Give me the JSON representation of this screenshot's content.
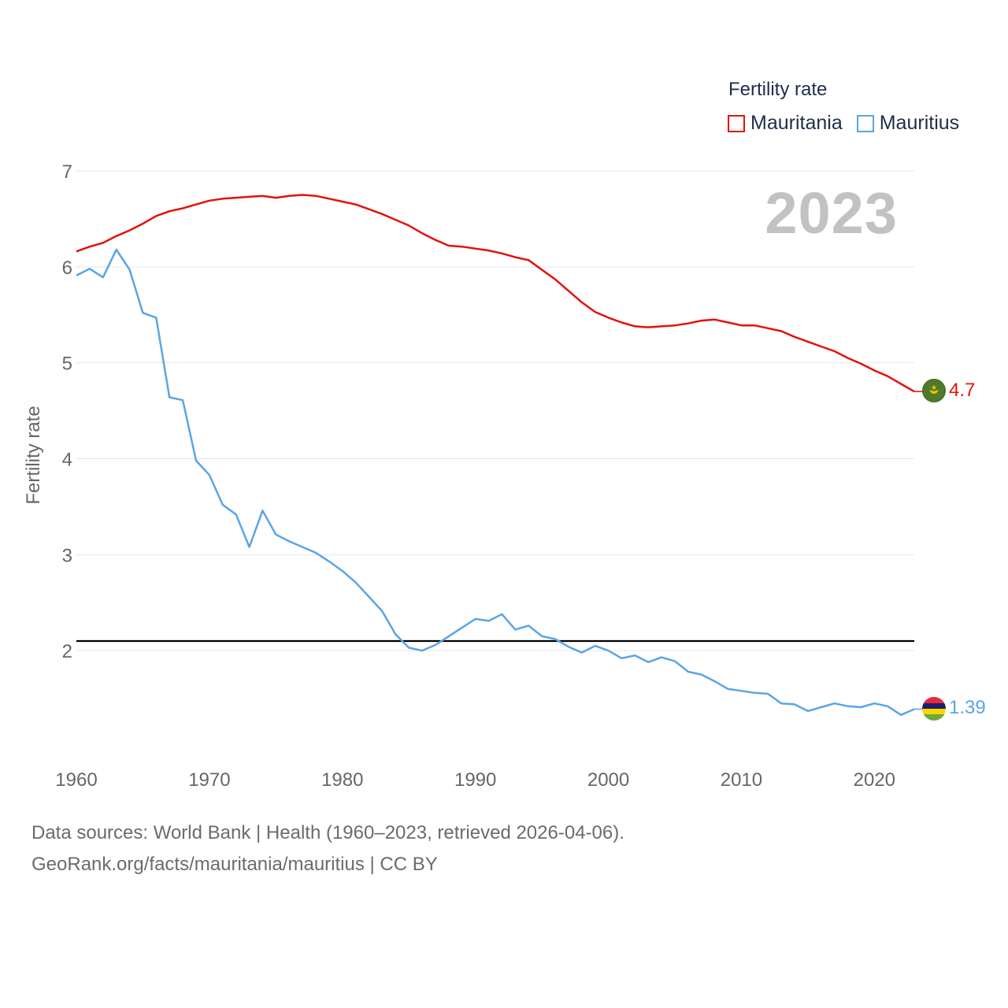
{
  "legend": {
    "title": "Fertility rate",
    "items": [
      {
        "label": "Mauritania",
        "color": "#e3120b"
      },
      {
        "label": "Mauritius",
        "color": "#5aa5e6"
      }
    ]
  },
  "year_label": "2023",
  "source": {
    "line1": "Data sources: World Bank | Health (1960–2023, retrieved 2026-04-06).",
    "line2": "GeoRank.org/facts/mauritania/mauritius | CC BY"
  },
  "chart_data": {
    "type": "line",
    "title": "Fertility rate",
    "ylabel": "Fertility rate",
    "xlabel": "",
    "xlim": [
      1960,
      2023
    ],
    "ylim": [
      1,
      7
    ],
    "yticks": [
      2,
      3,
      4,
      5,
      6,
      7
    ],
    "xticks": [
      1960,
      1970,
      1980,
      1990,
      2000,
      2010,
      2020
    ],
    "reference_line": 2.1,
    "grid": true,
    "legend_position": "top-right",
    "x": [
      1960,
      1961,
      1962,
      1963,
      1964,
      1965,
      1966,
      1967,
      1968,
      1969,
      1970,
      1971,
      1972,
      1973,
      1974,
      1975,
      1976,
      1977,
      1978,
      1979,
      1980,
      1981,
      1982,
      1983,
      1984,
      1985,
      1986,
      1987,
      1988,
      1989,
      1990,
      1991,
      1992,
      1993,
      1994,
      1995,
      1996,
      1997,
      1998,
      1999,
      2000,
      2001,
      2002,
      2003,
      2004,
      2005,
      2006,
      2007,
      2008,
      2009,
      2010,
      2011,
      2012,
      2013,
      2014,
      2015,
      2016,
      2017,
      2018,
      2019,
      2020,
      2021,
      2022,
      2023
    ],
    "series": [
      {
        "name": "Mauritania",
        "color": "#e3120b",
        "end_label": "4.7",
        "values": [
          6.16,
          6.21,
          6.25,
          6.32,
          6.38,
          6.45,
          6.53,
          6.58,
          6.61,
          6.65,
          6.69,
          6.71,
          6.72,
          6.73,
          6.74,
          6.72,
          6.74,
          6.75,
          6.74,
          6.71,
          6.68,
          6.65,
          6.6,
          6.55,
          6.49,
          6.43,
          6.35,
          6.28,
          6.22,
          6.21,
          6.19,
          6.17,
          6.14,
          6.1,
          6.07,
          5.97,
          5.87,
          5.75,
          5.63,
          5.53,
          5.47,
          5.42,
          5.38,
          5.37,
          5.38,
          5.39,
          5.41,
          5.44,
          5.45,
          5.42,
          5.39,
          5.39,
          5.36,
          5.33,
          5.27,
          5.22,
          5.17,
          5.12,
          5.05,
          4.99,
          4.92,
          4.86,
          4.78,
          4.7
        ]
      },
      {
        "name": "Mauritius",
        "color": "#5aa5e6",
        "end_label": "1.39",
        "values": [
          5.91,
          5.98,
          5.89,
          6.18,
          5.97,
          5.52,
          5.47,
          4.64,
          4.61,
          3.98,
          3.83,
          3.52,
          3.42,
          3.08,
          3.46,
          3.21,
          3.14,
          3.08,
          3.02,
          2.93,
          2.83,
          2.71,
          2.56,
          2.41,
          2.17,
          2.03,
          2.0,
          2.06,
          2.15,
          2.24,
          2.33,
          2.31,
          2.38,
          2.22,
          2.26,
          2.15,
          2.12,
          2.04,
          1.98,
          2.05,
          2.0,
          1.92,
          1.95,
          1.88,
          1.93,
          1.89,
          1.78,
          1.75,
          1.68,
          1.6,
          1.58,
          1.56,
          1.55,
          1.45,
          1.44,
          1.37,
          1.41,
          1.45,
          1.42,
          1.41,
          1.45,
          1.42,
          1.33,
          1.39
        ]
      }
    ]
  }
}
